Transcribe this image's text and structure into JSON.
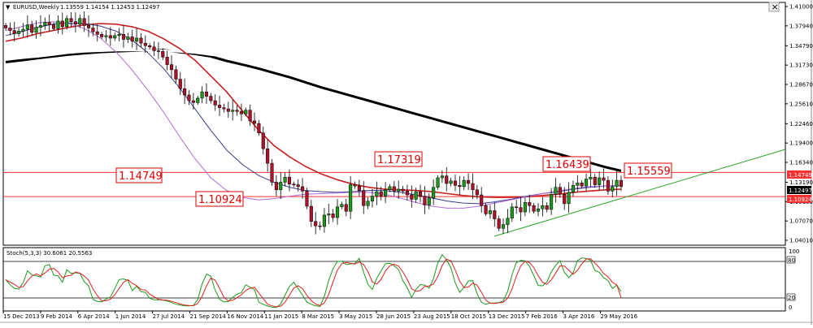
{
  "window": {
    "title": "EURUSD,Weekly",
    "ohlc": "1.13559 1.14154 1.12453 1.12497",
    "close_glyph": "×"
  },
  "colors": {
    "background": "#ffffff",
    "bull_candle": "#1a9a1a",
    "bear_candle": "#b0102a",
    "sma_black": "#000000",
    "sma_white": "#ffffff",
    "ma_red": "#c81e1e",
    "ma_navy": "#3a3a8a",
    "ma_violet": "#b06ad8",
    "hline": "#ff3030",
    "trendline": "#2aa52a",
    "stoch_main": "#1a9a1a",
    "stoch_signal": "#e02020"
  },
  "price_axis": {
    "ticks": [
      "1.41000",
      "1.37940",
      "1.34790",
      "1.31730",
      "1.28670",
      "1.25610",
      "1.22460",
      "1.19400",
      "1.16340",
      "1.13190",
      "1.10130",
      "1.07070",
      "1.04010"
    ],
    "current_price_label": "1.12497",
    "level_tag_1": "1.14749",
    "level_tag_2": "1.10924"
  },
  "annotations": {
    "level_1": "1.14749",
    "level_2": "1.10924",
    "high_1": "1.17319",
    "high_2": "1.16439",
    "high_3": "1.15559"
  },
  "indicator": {
    "label": "Stoch(5,3,3) 30.6061 20.5563",
    "upper_level": "80",
    "lower_level": "20",
    "axis_top": "100",
    "axis_bottom": "0"
  },
  "time_axis": {
    "labels": [
      "15 Dec 2013",
      "9 Feb 2014",
      "6 Apr 2014",
      "1 Jun 2014",
      "27 Jul 2014",
      "21 Sep 2014",
      "16 Nov 2014",
      "11 Jan 2015",
      "8 Mar 2015",
      "3 May 2015",
      "28 Jun 2015",
      "23 Aug 2015",
      "18 Oct 2015",
      "13 Dec 2015",
      "7 Feb 2016",
      "3 Apr 2016",
      "29 May 2016"
    ]
  },
  "chart_data": {
    "type": "candlestick",
    "title": "EURUSD,Weekly",
    "symbol": "EURUSD",
    "timeframe": "Weekly",
    "last_bar_ohlc": {
      "open": 1.13559,
      "high": 1.14154,
      "low": 1.12453,
      "close": 1.12497
    },
    "ylim": [
      1.0401,
      1.41
    ],
    "grid": false,
    "horizontal_levels": [
      1.14749,
      1.10924
    ],
    "annotated_highs": [
      1.17319,
      1.16439,
      1.15559
    ],
    "close_series": [
      1.376,
      1.372,
      1.367,
      1.371,
      1.374,
      1.381,
      1.369,
      1.377,
      1.38,
      1.385,
      1.381,
      1.375,
      1.387,
      1.378,
      1.391,
      1.386,
      1.382,
      1.391,
      1.38,
      1.376,
      1.37,
      1.366,
      1.362,
      1.364,
      1.36,
      1.364,
      1.366,
      1.358,
      1.362,
      1.355,
      1.36,
      1.352,
      1.348,
      1.346,
      1.34,
      1.339,
      1.33,
      1.318,
      1.31,
      1.295,
      1.28,
      1.27,
      1.261,
      1.258,
      1.265,
      1.275,
      1.268,
      1.261,
      1.254,
      1.25,
      1.248,
      1.244,
      1.246,
      1.244,
      1.24,
      1.246,
      1.229,
      1.225,
      1.21,
      1.185,
      1.162,
      1.132,
      1.12,
      1.132,
      1.14,
      1.129,
      1.128,
      1.125,
      1.118,
      1.094,
      1.07,
      1.063,
      1.062,
      1.08,
      1.082,
      1.076,
      1.093,
      1.097,
      1.086,
      1.128,
      1.126,
      1.119,
      1.095,
      1.102,
      1.11,
      1.117,
      1.11,
      1.12,
      1.125,
      1.118,
      1.121,
      1.118,
      1.112,
      1.105,
      1.117,
      1.11,
      1.096,
      1.107,
      1.124,
      1.139,
      1.142,
      1.13,
      1.134,
      1.127,
      1.125,
      1.135,
      1.13,
      1.12,
      1.112,
      1.095,
      1.082,
      1.087,
      1.074,
      1.059,
      1.065,
      1.075,
      1.093,
      1.092,
      1.085,
      1.1,
      1.095,
      1.086,
      1.09,
      1.095,
      1.089,
      1.113,
      1.124,
      1.113,
      1.098,
      1.116,
      1.127,
      1.131,
      1.126,
      1.137,
      1.14,
      1.128,
      1.139,
      1.135,
      1.118,
      1.125,
      1.135,
      1.125
    ],
    "moving_averages": [
      {
        "color": "#000000",
        "values": [
          1.322,
          1.325,
          1.328,
          1.331,
          1.334,
          1.336,
          1.338,
          1.339,
          1.34,
          1.341,
          1.341,
          1.338,
          1.335,
          1.331,
          1.324,
          1.318,
          1.312,
          1.305,
          1.298,
          1.29,
          1.282,
          1.275,
          1.268,
          1.261,
          1.254,
          1.247,
          1.24,
          1.233,
          1.226,
          1.219,
          1.212,
          1.205,
          1.198,
          1.191,
          1.184,
          1.177,
          1.17,
          1.163,
          1.156,
          1.15
        ]
      },
      {
        "color": "#ffffff",
        "values": [
          1.327,
          1.329,
          1.331,
          1.334,
          1.337,
          1.339,
          1.34,
          1.341,
          1.341,
          1.341,
          1.34,
          1.339,
          1.337,
          1.334,
          1.331,
          1.326,
          1.322,
          1.318,
          1.314,
          1.31,
          1.305,
          1.301,
          1.297,
          1.293,
          1.289,
          1.285,
          1.281,
          1.277,
          1.273,
          1.269,
          1.265,
          1.262,
          1.259,
          1.257,
          1.255,
          1.253,
          1.252,
          1.251,
          1.25,
          1.249
        ]
      },
      {
        "color": "#c81e1e",
        "values": [
          1.355,
          1.36,
          1.367,
          1.372,
          1.377,
          1.381,
          1.383,
          1.382,
          1.378,
          1.371,
          1.359,
          1.344,
          1.325,
          1.3,
          1.275,
          1.245,
          1.215,
          1.19,
          1.172,
          1.157,
          1.145,
          1.136,
          1.129,
          1.124,
          1.121,
          1.12,
          1.119,
          1.117,
          1.114,
          1.111,
          1.109,
          1.108,
          1.108,
          1.109,
          1.111,
          1.113,
          1.116,
          1.118,
          1.12,
          1.121
        ]
      },
      {
        "color": "#3a3a8a",
        "values": [
          1.364,
          1.37,
          1.377,
          1.382,
          1.384,
          1.383,
          1.379,
          1.371,
          1.357,
          1.337,
          1.312,
          1.282,
          1.248,
          1.214,
          1.183,
          1.16,
          1.143,
          1.132,
          1.124,
          1.119,
          1.117,
          1.116,
          1.117,
          1.119,
          1.119,
          1.116,
          1.112,
          1.107,
          1.102,
          1.099,
          1.098,
          1.101,
          1.105,
          1.11,
          1.114,
          1.117,
          1.121,
          1.124,
          1.126,
          1.127
        ]
      },
      {
        "color": "#b06ad8",
        "values": [
          1.372,
          1.378,
          1.384,
          1.386,
          1.383,
          1.375,
          1.36,
          1.338,
          1.31,
          1.278,
          1.243,
          1.205,
          1.169,
          1.139,
          1.119,
          1.108,
          1.104,
          1.106,
          1.11,
          1.113,
          1.114,
          1.115,
          1.116,
          1.116,
          1.113,
          1.107,
          1.1,
          1.094,
          1.091,
          1.091,
          1.094,
          1.099,
          1.104,
          1.109,
          1.114,
          1.118,
          1.122,
          1.125,
          1.126,
          1.127
        ]
      }
    ],
    "indicator": {
      "name": "Stoch(5,3,3)",
      "main": 30.6061,
      "signal": 20.5563,
      "levels": [
        80,
        20
      ],
      "range": [
        0,
        100
      ]
    },
    "x_tick_labels": [
      "15 Dec 2013",
      "9 Feb 2014",
      "6 Apr 2014",
      "1 Jun 2014",
      "27 Jul 2014",
      "21 Sep 2014",
      "16 Nov 2014",
      "11 Jan 2015",
      "8 Mar 2015",
      "3 May 2015",
      "28 Jun 2015",
      "23 Aug 2015",
      "18 Oct 2015",
      "13 Dec 2015",
      "7 Feb 2016",
      "3 Apr 2016",
      "29 May 2016"
    ]
  }
}
